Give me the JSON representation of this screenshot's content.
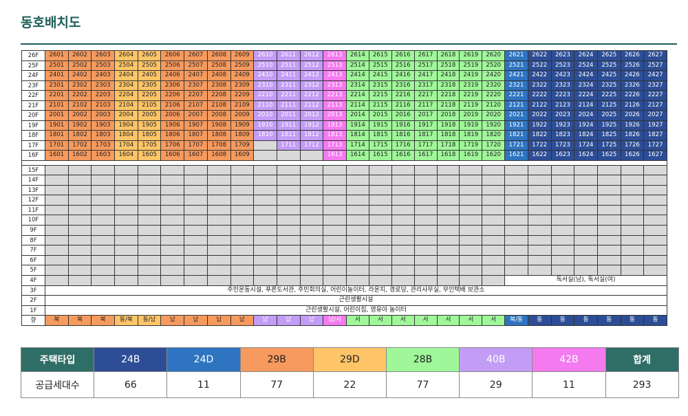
{
  "page": {
    "title": "동호배치도"
  },
  "types": {
    "24B": {
      "bg": "#2d4e96",
      "fg": "#ffffff"
    },
    "24D": {
      "bg": "#2e74c0",
      "fg": "#ffffff"
    },
    "29B": {
      "bg": "#f79a5e",
      "fg": "#222222"
    },
    "29D": {
      "bg": "#fec568",
      "fg": "#222222"
    },
    "28B": {
      "bg": "#a0f79a",
      "fg": "#222222"
    },
    "40B": {
      "bg": "#c39cf6",
      "fg": "#ffffff"
    },
    "42B": {
      "bg": "#f47af0",
      "fg": "#ffffff"
    }
  },
  "grid": {
    "top_rows": [
      {
        "floor": "26F",
        "units": [
          "2601",
          "2602",
          "2603",
          "2604",
          "2605",
          "2606",
          "2607",
          "2608",
          "2609",
          "2610",
          "2611",
          "2612",
          "2613",
          "2614",
          "2615",
          "2616",
          "2617",
          "2618",
          "2619",
          "2620",
          "2621",
          "2622",
          "2623",
          "2624",
          "2625",
          "2626",
          "2627"
        ]
      },
      {
        "floor": "25F",
        "units": [
          "2501",
          "2502",
          "2503",
          "2504",
          "2505",
          "2506",
          "2507",
          "2508",
          "2509",
          "2510",
          "2511",
          "2512",
          "2513",
          "2514",
          "2515",
          "2516",
          "2517",
          "2518",
          "2519",
          "2520",
          "2521",
          "2522",
          "2523",
          "2524",
          "2525",
          "2526",
          "2527"
        ]
      },
      {
        "floor": "24F",
        "units": [
          "2401",
          "2402",
          "2403",
          "2404",
          "2405",
          "2406",
          "2407",
          "2408",
          "2409",
          "2410",
          "2411",
          "2412",
          "2413",
          "2414",
          "2415",
          "2416",
          "2417",
          "2418",
          "2419",
          "2420",
          "2421",
          "2422",
          "2423",
          "2424",
          "2425",
          "2426",
          "2427"
        ]
      },
      {
        "floor": "23F",
        "units": [
          "2301",
          "2302",
          "2303",
          "2304",
          "2305",
          "2306",
          "2307",
          "2308",
          "2309",
          "2310",
          "2311",
          "2312",
          "2313",
          "2314",
          "2315",
          "2316",
          "2317",
          "2318",
          "2319",
          "2320",
          "2321",
          "2322",
          "2323",
          "2324",
          "2325",
          "2326",
          "2327"
        ]
      },
      {
        "floor": "22F",
        "units": [
          "2201",
          "2202",
          "2203",
          "2204",
          "2205",
          "2206",
          "2207",
          "2208",
          "2209",
          "2210",
          "2211",
          "2212",
          "2213",
          "2214",
          "2215",
          "2216",
          "2217",
          "2218",
          "2219",
          "2220",
          "2221",
          "2222",
          "2223",
          "2224",
          "2225",
          "2226",
          "2227"
        ]
      },
      {
        "floor": "21F",
        "units": [
          "2101",
          "2102",
          "2103",
          "2104",
          "2105",
          "2106",
          "2107",
          "2108",
          "2109",
          "2110",
          "2111",
          "2112",
          "2113",
          "2114",
          "2115",
          "2116",
          "2117",
          "2118",
          "2119",
          "2120",
          "2121",
          "2122",
          "2123",
          "2124",
          "2125",
          "2126",
          "2127"
        ]
      },
      {
        "floor": "20F",
        "units": [
          "2001",
          "2002",
          "2003",
          "2004",
          "2005",
          "2006",
          "2007",
          "2008",
          "2009",
          "2010",
          "2011",
          "2012",
          "2013",
          "2014",
          "2015",
          "2016",
          "2017",
          "2018",
          "2019",
          "2020",
          "2021",
          "2022",
          "2023",
          "2024",
          "2025",
          "2026",
          "2027"
        ]
      },
      {
        "floor": "19F",
        "units": [
          "1901",
          "1902",
          "1903",
          "1904",
          "1905",
          "1906",
          "1907",
          "1908",
          "1909",
          "1910",
          "1911",
          "1912",
          "1913",
          "1914",
          "1915",
          "1916",
          "1917",
          "1918",
          "1919",
          "1920",
          "1921",
          "1922",
          "1923",
          "1924",
          "1925",
          "1926",
          "1927"
        ]
      },
      {
        "floor": "18F",
        "units": [
          "1801",
          "1802",
          "1803",
          "1804",
          "1805",
          "1806",
          "1807",
          "1808",
          "1809",
          "1810",
          "1811",
          "1812",
          "1813",
          "1814",
          "1815",
          "1816",
          "1817",
          "1818",
          "1819",
          "1820",
          "1821",
          "1822",
          "1823",
          "1824",
          "1825",
          "1826",
          "1827"
        ]
      },
      {
        "floor": "17F",
        "units": [
          "1701",
          "1702",
          "1703",
          "1704",
          "1705",
          "1706",
          "1707",
          "1708",
          "1709",
          "",
          "1711",
          "1712",
          "1713",
          "1714",
          "1715",
          "1716",
          "1717",
          "1718",
          "1719",
          "1720",
          "1721",
          "1722",
          "1723",
          "1724",
          "1725",
          "1726",
          "1727"
        ]
      },
      {
        "floor": "16F",
        "units": [
          "1601",
          "1602",
          "1603",
          "1604",
          "1605",
          "1606",
          "1607",
          "1608",
          "1609",
          "",
          "",
          "",
          "1613",
          "1614",
          "1615",
          "1616",
          "1617",
          "1618",
          "1619",
          "1620",
          "1621",
          "1622",
          "1623",
          "1624",
          "1625",
          "1626",
          "1627"
        ]
      }
    ],
    "col_types": [
      "29B",
      "29B",
      "29B",
      "29D",
      "29D",
      "29B",
      "29B",
      "29B",
      "29B",
      "40B",
      "40B",
      "40B",
      "42B",
      "28B",
      "28B",
      "28B",
      "28B",
      "28B",
      "28B",
      "28B",
      "24D",
      "24B",
      "24B",
      "24B",
      "24B",
      "24B",
      "24B"
    ],
    "empty_floors": [
      "15F",
      "14F",
      "13F",
      "12F",
      "11F",
      "10F",
      "9F",
      "8F",
      "7F",
      "6F",
      "5F"
    ],
    "floor_4": {
      "floor": "4F",
      "text": "독서실(남), 독서실(여)"
    },
    "low_rows": [
      {
        "floor": "3F",
        "text": "주민운동시설, 푸른도서관, 주민회의실, 어린이놀이터, 라운지, 경로당, 관리사무실, 무인택배 보관소"
      },
      {
        "floor": "2F",
        "text": "근린생활시설"
      },
      {
        "floor": "1F",
        "text": "근린생활시설, 어린이집, 영유아 놀이터"
      }
    ],
    "direction": {
      "label": "향",
      "values": [
        "북",
        "북",
        "북",
        "동/북",
        "동/남",
        "남",
        "남",
        "남",
        "남",
        "남",
        "남",
        "남",
        "남/서",
        "서",
        "서",
        "서",
        "서",
        "서",
        "서",
        "서",
        "북/동",
        "동",
        "동",
        "동",
        "동",
        "동",
        "동"
      ]
    }
  },
  "legend": {
    "header_label": "주택타입",
    "row_label": "공급세대수",
    "items": [
      {
        "type": "24B",
        "count": "66"
      },
      {
        "type": "24D",
        "count": "11"
      },
      {
        "type": "29B",
        "count": "77"
      },
      {
        "type": "29D",
        "count": "22"
      },
      {
        "type": "28B",
        "count": "77"
      },
      {
        "type": "40B",
        "count": "29"
      },
      {
        "type": "42B",
        "count": "11"
      }
    ],
    "total_label": "합계",
    "total_count": "293"
  }
}
